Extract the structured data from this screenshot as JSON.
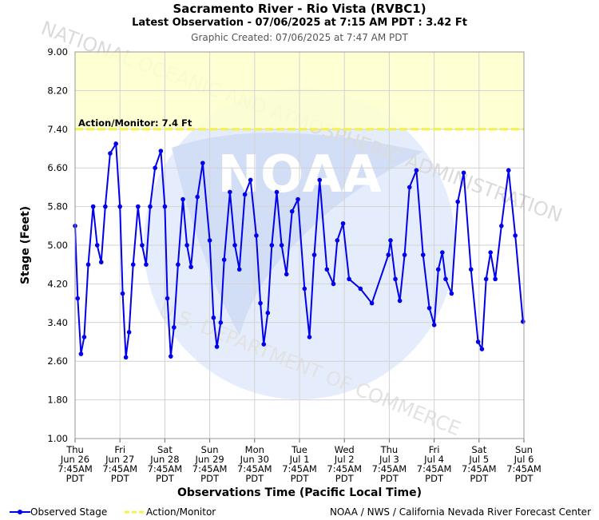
{
  "header": {
    "title": "Sacramento River - Rio Vista (RVBC1)",
    "subtitle": "Latest Observation - 07/06/2025 at 7:15 AM PDT : 3.42 Ft",
    "created": "Graphic Created: 07/06/2025 at 7:47 AM PDT"
  },
  "watermark": {
    "logo_text": "NOAA",
    "ring_text_top": "NATIONAL OCEANIC AND ATMOSPHERIC ADMINISTRATION",
    "ring_text_bottom": "U.S. DEPARTMENT OF COMMERCE"
  },
  "legend": {
    "observed": "Observed Stage",
    "action": "Action/Monitor",
    "credit": "NOAA / NWS / California Nevada River Forecast Center"
  },
  "colors": {
    "observed": "#0000ee",
    "action_line": "#f2f24a",
    "action_band": "#ffffcc",
    "watermark": "#dde8fb"
  },
  "chart_data": {
    "type": "line",
    "title": "Sacramento River - Rio Vista (RVBC1)",
    "xlabel": "Observations Time (Pacific Local Time)",
    "ylabel": "Stage (Feet)",
    "ylim": [
      1.0,
      9.0
    ],
    "xlim": [
      "06/26 07:45",
      "07/06 07:45"
    ],
    "yticks": [
      "1.00",
      "1.80",
      "2.60",
      "3.40",
      "4.20",
      "5.00",
      "5.80",
      "6.60",
      "7.40",
      "8.20",
      "9.00"
    ],
    "xticks": [
      {
        "day": "Thu",
        "date": "Jun 26",
        "time": "7:45AM",
        "tz": "PDT"
      },
      {
        "day": "Fri",
        "date": "Jun 27",
        "time": "7:45AM",
        "tz": "PDT"
      },
      {
        "day": "Sat",
        "date": "Jun 28",
        "time": "7:45AM",
        "tz": "PDT"
      },
      {
        "day": "Sun",
        "date": "Jun 29",
        "time": "7:45AM",
        "tz": "PDT"
      },
      {
        "day": "Mon",
        "date": "Jun 30",
        "time": "7:45AM",
        "tz": "PDT"
      },
      {
        "day": "Tue",
        "date": "Jul 1",
        "time": "7:45AM",
        "tz": "PDT"
      },
      {
        "day": "Wed",
        "date": "Jul 2",
        "time": "7:45AM",
        "tz": "PDT"
      },
      {
        "day": "Thu",
        "date": "Jul 3",
        "time": "7:45AM",
        "tz": "PDT"
      },
      {
        "day": "Fri",
        "date": "Jul 4",
        "time": "7:45AM",
        "tz": "PDT"
      },
      {
        "day": "Sat",
        "date": "Jul 5",
        "time": "7:45AM",
        "tz": "PDT"
      },
      {
        "day": "Sun",
        "date": "Jul 6",
        "time": "7:45AM",
        "tz": "PDT"
      }
    ],
    "grid": true,
    "legend_position": "bottom",
    "threshold": {
      "name": "Action/Monitor",
      "value": 7.4,
      "label": "Action/Monitor: 7.4 Ft"
    },
    "series": [
      {
        "name": "Observed Stage",
        "x": [
          "06/26 07:45",
          "06/26 09:09",
          "06/26 10:55",
          "06/26 12:38",
          "06/26 14:48",
          "06/26 17:25",
          "06/26 19:35",
          "06/26 21:44",
          "06/26 23:54",
          "06/27 02:31",
          "06/27 05:36",
          "06/27 07:45",
          "06/27 09:12",
          "06/27 10:55",
          "06/27 12:38",
          "06/27 14:48",
          "06/27 17:25",
          "06/27 19:35",
          "06/27 21:44",
          "06/27 23:54",
          "06/28 02:31",
          "06/28 05:36",
          "06/28 07:45",
          "06/28 09:06",
          "06/28 10:55",
          "06/28 12:38",
          "06/28 14:48",
          "06/28 17:25",
          "06/28 19:35",
          "06/28 21:44",
          "06/29 01:10",
          "06/29 04:00",
          "06/29 07:45",
          "06/29 09:48",
          "06/29 11:35",
          "06/29 13:36",
          "06/29 15:28",
          "06/29 18:32",
          "06/29 21:11",
          "06/29 23:36",
          "06/30 02:33",
          "06/30 05:34",
          "06/30 08:40",
          "06/30 10:51",
          "06/30 12:38",
          "06/30 14:48",
          "06/30 16:57",
          "06/30 19:35",
          "06/30 22:12",
          "07/01 00:48",
          "07/01 03:47",
          "07/01 06:54",
          "07/01 10:27",
          "07/01 13:05",
          "07/01 15:40",
          "07/01 18:32",
          "07/01 22:24",
          "07/02 01:53",
          "07/02 03:56",
          "07/02 07:02",
          "07/02 10:16",
          "07/02 16:20",
          "07/02 22:27",
          "07/03 07:16",
          "07/03 08:26",
          "07/03 11:01",
          "07/03 13:23",
          "07/03 15:57",
          "07/03 18:34",
          "07/03 22:16",
          "07/04 01:50",
          "07/04 05:10",
          "07/04 07:47",
          "07/04 09:57",
          "07/04 12:07",
          "07/04 13:54",
          "07/04 17:04",
          "07/04 20:23",
          "07/04 23:32",
          "07/05 03:27",
          "07/05 07:15",
          "07/05 09:18",
          "07/05 11:32",
          "07/05 13:54",
          "07/05 16:26",
          "07/05 19:43",
          "07/05 23:32",
          "07/06 03:07",
          "07/06 07:15"
        ],
        "y": [
          5.4,
          3.9,
          2.75,
          3.1,
          4.6,
          5.8,
          5.0,
          4.65,
          5.8,
          6.9,
          7.1,
          5.8,
          4.0,
          2.68,
          3.2,
          4.6,
          5.8,
          5.0,
          4.6,
          5.8,
          6.6,
          6.95,
          5.8,
          3.9,
          2.7,
          3.3,
          4.6,
          5.95,
          5.0,
          4.55,
          6.0,
          6.7,
          5.1,
          3.5,
          2.9,
          3.4,
          4.7,
          6.1,
          5.0,
          4.5,
          6.05,
          6.35,
          5.2,
          3.8,
          2.95,
          3.6,
          5.0,
          6.1,
          5.0,
          4.4,
          5.7,
          5.95,
          4.1,
          3.1,
          4.8,
          6.35,
          4.5,
          4.2,
          5.1,
          5.45,
          4.3,
          4.1,
          3.8,
          4.8,
          5.1,
          4.3,
          3.85,
          4.8,
          6.2,
          6.55,
          4.8,
          3.7,
          3.35,
          4.5,
          4.85,
          4.3,
          4.0,
          5.9,
          6.5,
          4.5,
          3.0,
          2.85,
          4.3,
          4.85,
          4.3,
          5.4,
          6.55,
          5.2,
          3.42
        ]
      }
    ]
  }
}
